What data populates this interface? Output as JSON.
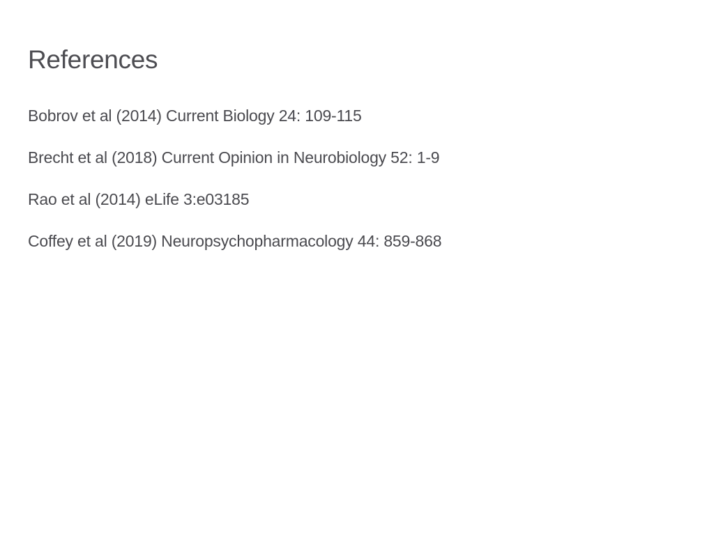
{
  "slide": {
    "title": "References",
    "references": [
      "Bobrov et al (2014) Current Biology 24: 109-115",
      "Brecht et al (2018) Current Opinion in Neurobiology 52: 1-9",
      "Rao et al (2014) eLife 3:e03185",
      "Coffey et al (2019) Neuropsychopharmacology 44: 859-868"
    ]
  },
  "colors": {
    "background": "#ffffff",
    "text": "#4a4a4f"
  }
}
